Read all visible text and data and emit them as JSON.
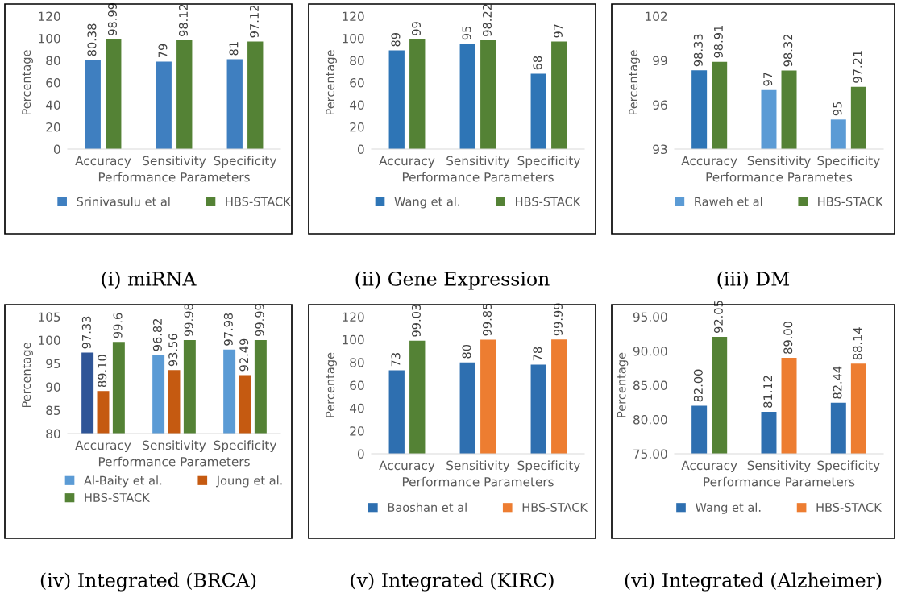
{
  "chart_data": [
    {
      "type": "bar",
      "annotations": [
        "(i) miRNA"
      ],
      "xlabel": "Performance Parameters",
      "ylabel": "Percentage",
      "categories": [
        "Accuracy",
        "Sensitivity",
        "Specificity"
      ],
      "ylim": [
        0,
        120
      ],
      "yticks": [
        0,
        20,
        40,
        60,
        80,
        100,
        120
      ],
      "legend": "bottom",
      "grid": false,
      "data_labels": true,
      "series": [
        {
          "name": "Srinivasulu et al",
          "color": "#3f7fc0",
          "values": [
            80.38,
            79,
            81
          ]
        },
        {
          "name": "HBS-STACK",
          "color": "#548235",
          "values": [
            98.99,
            98.12,
            97.12
          ]
        }
      ]
    },
    {
      "type": "bar",
      "annotations": [
        "(ii) Gene Expression"
      ],
      "xlabel": "Performance Parameters",
      "ylabel": "Percentage",
      "categories": [
        "Accuracy",
        "Sensitivity",
        "Specificity"
      ],
      "ylim": [
        0,
        120
      ],
      "yticks": [
        0,
        20,
        40,
        60,
        80,
        100,
        120
      ],
      "legend": "bottom",
      "grid": false,
      "data_labels": true,
      "series": [
        {
          "name": "Wang et al.",
          "color": "#2e75b6",
          "values": [
            89,
            95,
            68
          ]
        },
        {
          "name": "HBS-STACK",
          "color": "#548235",
          "values": [
            99,
            98.22,
            97
          ]
        }
      ]
    },
    {
      "type": "bar",
      "annotations": [
        "(iii) DM"
      ],
      "xlabel": "Performance Parametes",
      "ylabel": "Percentage",
      "categories": [
        "Accuracy",
        "Sensitivity",
        "Specificity"
      ],
      "ylim": [
        93,
        102
      ],
      "yticks": [
        93,
        96,
        99,
        102
      ],
      "legend": "bottom",
      "grid": false,
      "data_labels": true,
      "series": [
        {
          "name": "Raweh et al",
          "color": "#5b9bd5",
          "colors": [
            "#2e75b6",
            "#5b9bd5",
            "#5b9bd5"
          ],
          "values": [
            98.33,
            97,
            95
          ]
        },
        {
          "name": "HBS-STACK",
          "color": "#548235",
          "values": [
            98.91,
            98.32,
            97.21
          ]
        }
      ]
    },
    {
      "type": "bar",
      "annotations": [
        "(iv) Integrated (BRCA)"
      ],
      "xlabel": "Performance Parameters",
      "ylabel": "Percentage",
      "categories": [
        "Accuracy",
        "Sensitivity",
        "Specificity"
      ],
      "ylim": [
        80,
        105
      ],
      "yticks": [
        80,
        85,
        90,
        95,
        100,
        105
      ],
      "legend": "bottom",
      "grid": false,
      "series": [
        {
          "name": "Al-Baity et al.",
          "color": "#5b9bd5",
          "colors": [
            "#2f5597",
            "#5b9bd5",
            "#5b9bd5"
          ],
          "values": [
            97.33,
            96.82,
            97.98
          ],
          "value_labels": [
            "97.33",
            "96.82",
            "97.98"
          ]
        },
        {
          "name": "Joung et al.",
          "color": "#c55a11",
          "values": [
            89.1,
            93.56,
            92.49
          ],
          "value_labels": [
            "89.10",
            "93.56",
            "92.49"
          ]
        },
        {
          "name": "HBS-STACK",
          "color": "#548235",
          "values": [
            99.6,
            99.98,
            99.99
          ],
          "value_labels": [
            "99.6",
            "99.98",
            "99.99"
          ]
        }
      ]
    },
    {
      "type": "bar",
      "annotations": [
        "(v) Integrated (KIRC)"
      ],
      "xlabel": "Performance Parameters",
      "ylabel": "Percentage",
      "categories": [
        "Accuracy",
        "Sensitivity",
        "Specificity"
      ],
      "ylim": [
        0,
        120
      ],
      "yticks": [
        0,
        20,
        40,
        60,
        80,
        100,
        120
      ],
      "legend": "bottom",
      "grid": false,
      "data_labels": true,
      "series": [
        {
          "name": "Baoshan et al",
          "color": "#2e6fb0",
          "values": [
            73,
            80,
            78
          ]
        },
        {
          "name": "HBS-STACK",
          "color": "#ed7d31",
          "colors": [
            "#548235",
            "#ed7d31",
            "#ed7d31"
          ],
          "values": [
            99.03,
            99.85,
            99.99
          ]
        }
      ]
    },
    {
      "type": "bar",
      "annotations": [
        "(vi) Integrated (Alzheimer)"
      ],
      "xlabel": "Performance Parameters",
      "ylabel": "Percentage",
      "categories": [
        "Accuracy",
        "Sensitivity",
        "Specificity"
      ],
      "ylim": [
        75,
        95
      ],
      "yticks": [
        {
          "value": 75,
          "label": "75.00"
        },
        {
          "value": 80,
          "label": "80.00"
        },
        {
          "value": 85,
          "label": "85.00"
        },
        {
          "value": 90,
          "label": "90.00"
        },
        {
          "value": 95,
          "label": "95.00"
        }
      ],
      "legend": "bottom",
      "grid": false,
      "series": [
        {
          "name": "Wang et al.",
          "color": "#2e6fb0",
          "values": [
            82.0,
            81.12,
            82.44
          ],
          "value_labels": [
            "82.00",
            "81.12",
            "82.44"
          ]
        },
        {
          "name": "HBS-STACK",
          "color": "#ed7d31",
          "colors": [
            "#548235",
            "#ed7d31",
            "#ed7d31"
          ],
          "values": [
            92.05,
            89.0,
            88.14
          ],
          "value_labels": [
            "92.05",
            "89.00",
            "88.14"
          ]
        }
      ]
    }
  ]
}
